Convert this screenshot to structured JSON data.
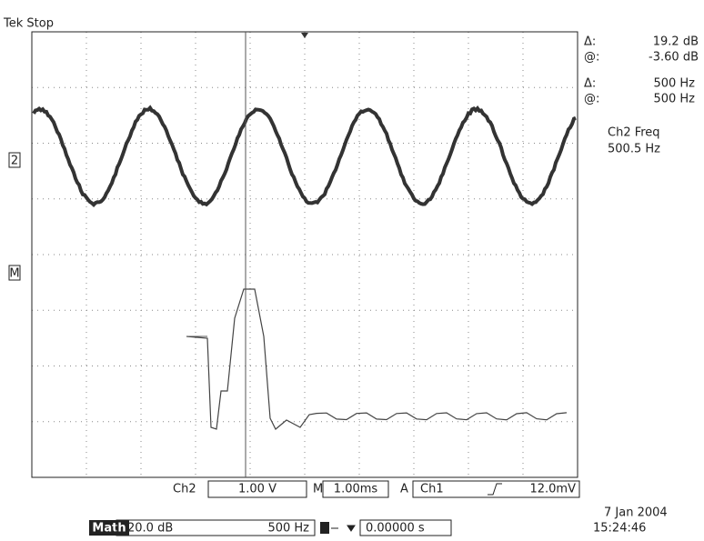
{
  "status": "Tek Stop",
  "readouts": [
    {
      "label": "Δ:",
      "value": "19.2 dB"
    },
    {
      "label": "@:",
      "value": "-3.60 dB"
    },
    {
      "label": "Δ:",
      "value": "500 Hz"
    },
    {
      "label": "@:",
      "value": "500 Hz"
    }
  ],
  "measurement": {
    "label": "Ch2 Freq",
    "value": "500.5 Hz"
  },
  "markers": {
    "channel": "2",
    "math": "M"
  },
  "settings": {
    "channel": "Ch2",
    "volts": "1.00 V",
    "time_prefix": "M",
    "time": "1.00ms",
    "trigger_prefix": "A",
    "trigger_channel": "Ch1",
    "trigger_level": "12.0mV"
  },
  "math_bar": {
    "label": "Math",
    "scale": "20.0 dB",
    "center": "500 Hz",
    "position": "0.00000 s"
  },
  "timestamp": {
    "date": "7 Jan 2004",
    "time": "15:24:46"
  }
}
